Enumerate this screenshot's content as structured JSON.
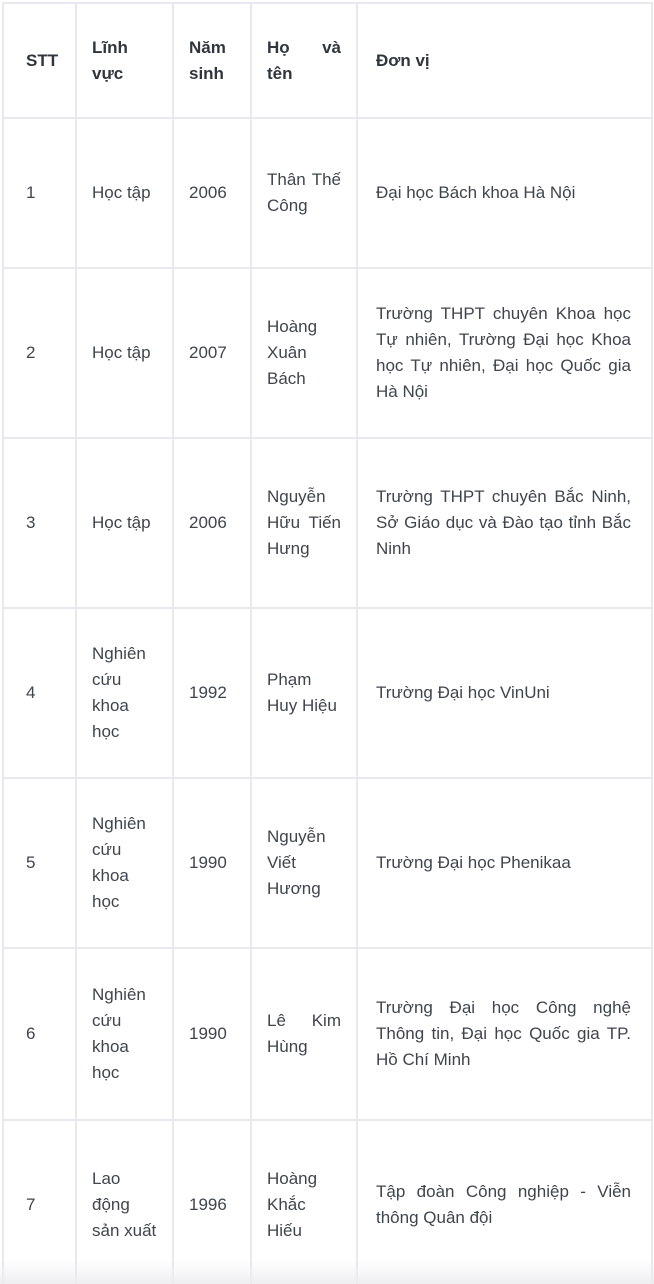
{
  "table": {
    "columns": [
      {
        "key": "stt",
        "label": "STT"
      },
      {
        "key": "linh_vuc",
        "label": "Lĩnh vực"
      },
      {
        "key": "nam_sinh",
        "label": "Năm sinh"
      },
      {
        "key": "ho_va_ten",
        "label": "Họ và tên"
      },
      {
        "key": "don_vi",
        "label": "Đơn vị"
      }
    ],
    "rows": [
      [
        "1",
        "Học tập",
        "2006",
        "Thân Thế Công",
        "Đại học Bách khoa Hà Nội"
      ],
      [
        "2",
        "Học tập",
        "2007",
        "Hoàng Xuân Bách",
        "Trường THPT chuyên Khoa học Tự nhiên, Trường Đại học Khoa học Tự nhiên, Đại học Quốc gia Hà Nội"
      ],
      [
        "3",
        "Học tập",
        "2006",
        "Nguyễn Hữu Tiến Hưng",
        "Trường THPT chuyên Bắc Ninh, Sở Giáo dục và Đào tạo tỉnh Bắc Ninh"
      ],
      [
        "4",
        "Nghiên cứu khoa học",
        "1992",
        "Phạm Huy Hiệu",
        "Trường Đại học VinUni"
      ],
      [
        "5",
        "Nghiên cứu khoa học",
        "1990",
        "Nguyễn Viết Hương",
        "Trường Đại học Phenikaa"
      ],
      [
        "6",
        "Nghiên cứu khoa học",
        "1990",
        "Lê Kim Hùng",
        "Trường Đại học Công nghệ Thông tin, Đại học Quốc gia TP. Hồ Chí Minh"
      ],
      [
        "7",
        "Lao động sản xuất",
        "1996",
        "Hoàng Khắc Hiếu",
        "Tập đoàn Công nghiệp - Viễn thông Quân đội"
      ]
    ],
    "colors": {
      "border": "#e8e8ee",
      "header_text": "#30363d",
      "body_text": "#3f454d",
      "background": "#ffffff",
      "bottom_fade": "#ececef"
    }
  }
}
